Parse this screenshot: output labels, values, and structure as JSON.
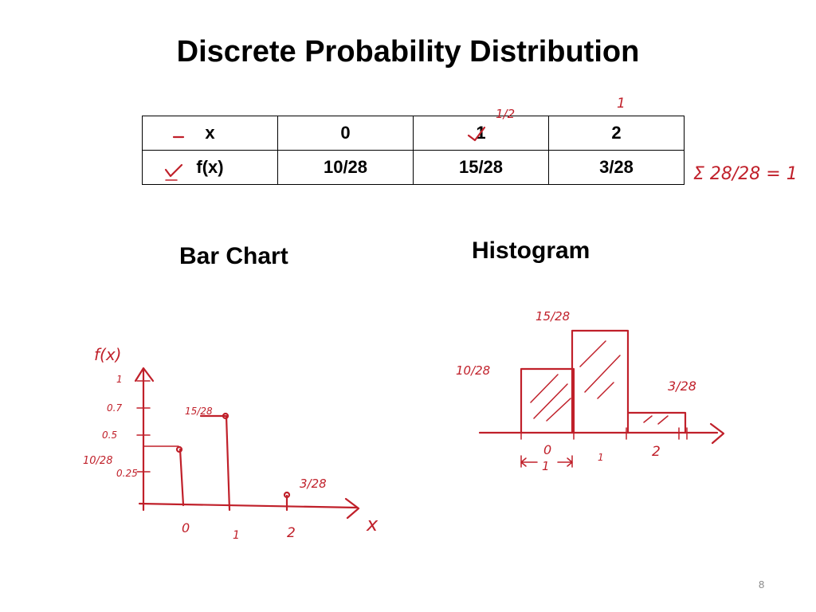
{
  "slide": {
    "title": "Discrete Probability Distribution",
    "page_number": "8"
  },
  "table": {
    "rows": [
      {
        "header": "x",
        "cells": [
          "0",
          "1",
          "2"
        ]
      },
      {
        "header": "f(x)",
        "cells": [
          "10/28",
          "15/28",
          "3/28"
        ]
      }
    ]
  },
  "headings": {
    "bar_chart": "Bar Chart",
    "histogram": "Histogram"
  },
  "annotations": {
    "colors": {
      "ink": "#c0202a"
    },
    "above_col_1": "1/2",
    "above_col_2": "1",
    "sum_note": "Σ 28/28 = 1",
    "bar_chart": {
      "ylabel": "f(x)",
      "xlabel": "x",
      "y_ticks": [
        "1",
        "0.7",
        "0.5",
        "0.25"
      ],
      "left_label": "10/28",
      "x_ticks": [
        "0",
        "1",
        "2"
      ],
      "value_labels": [
        "15/28",
        "3/28"
      ]
    },
    "histogram": {
      "value_labels": [
        "10/28",
        "15/28",
        "3/28"
      ],
      "x_ticks": [
        "0",
        "1",
        "2"
      ],
      "width_note": "1"
    }
  },
  "chart_data": [
    {
      "type": "bar",
      "title": "Bar Chart",
      "categories": [
        "0",
        "1",
        "2"
      ],
      "values": [
        0.357,
        0.536,
        0.107
      ],
      "xlabel": "x",
      "ylabel": "f(x)",
      "ylim": [
        0,
        1
      ],
      "grid": false
    },
    {
      "type": "bar",
      "title": "Histogram",
      "categories": [
        "0",
        "1",
        "2"
      ],
      "values": [
        0.357,
        0.536,
        0.107
      ],
      "xlabel": "",
      "ylabel": "",
      "grid": false
    }
  ]
}
